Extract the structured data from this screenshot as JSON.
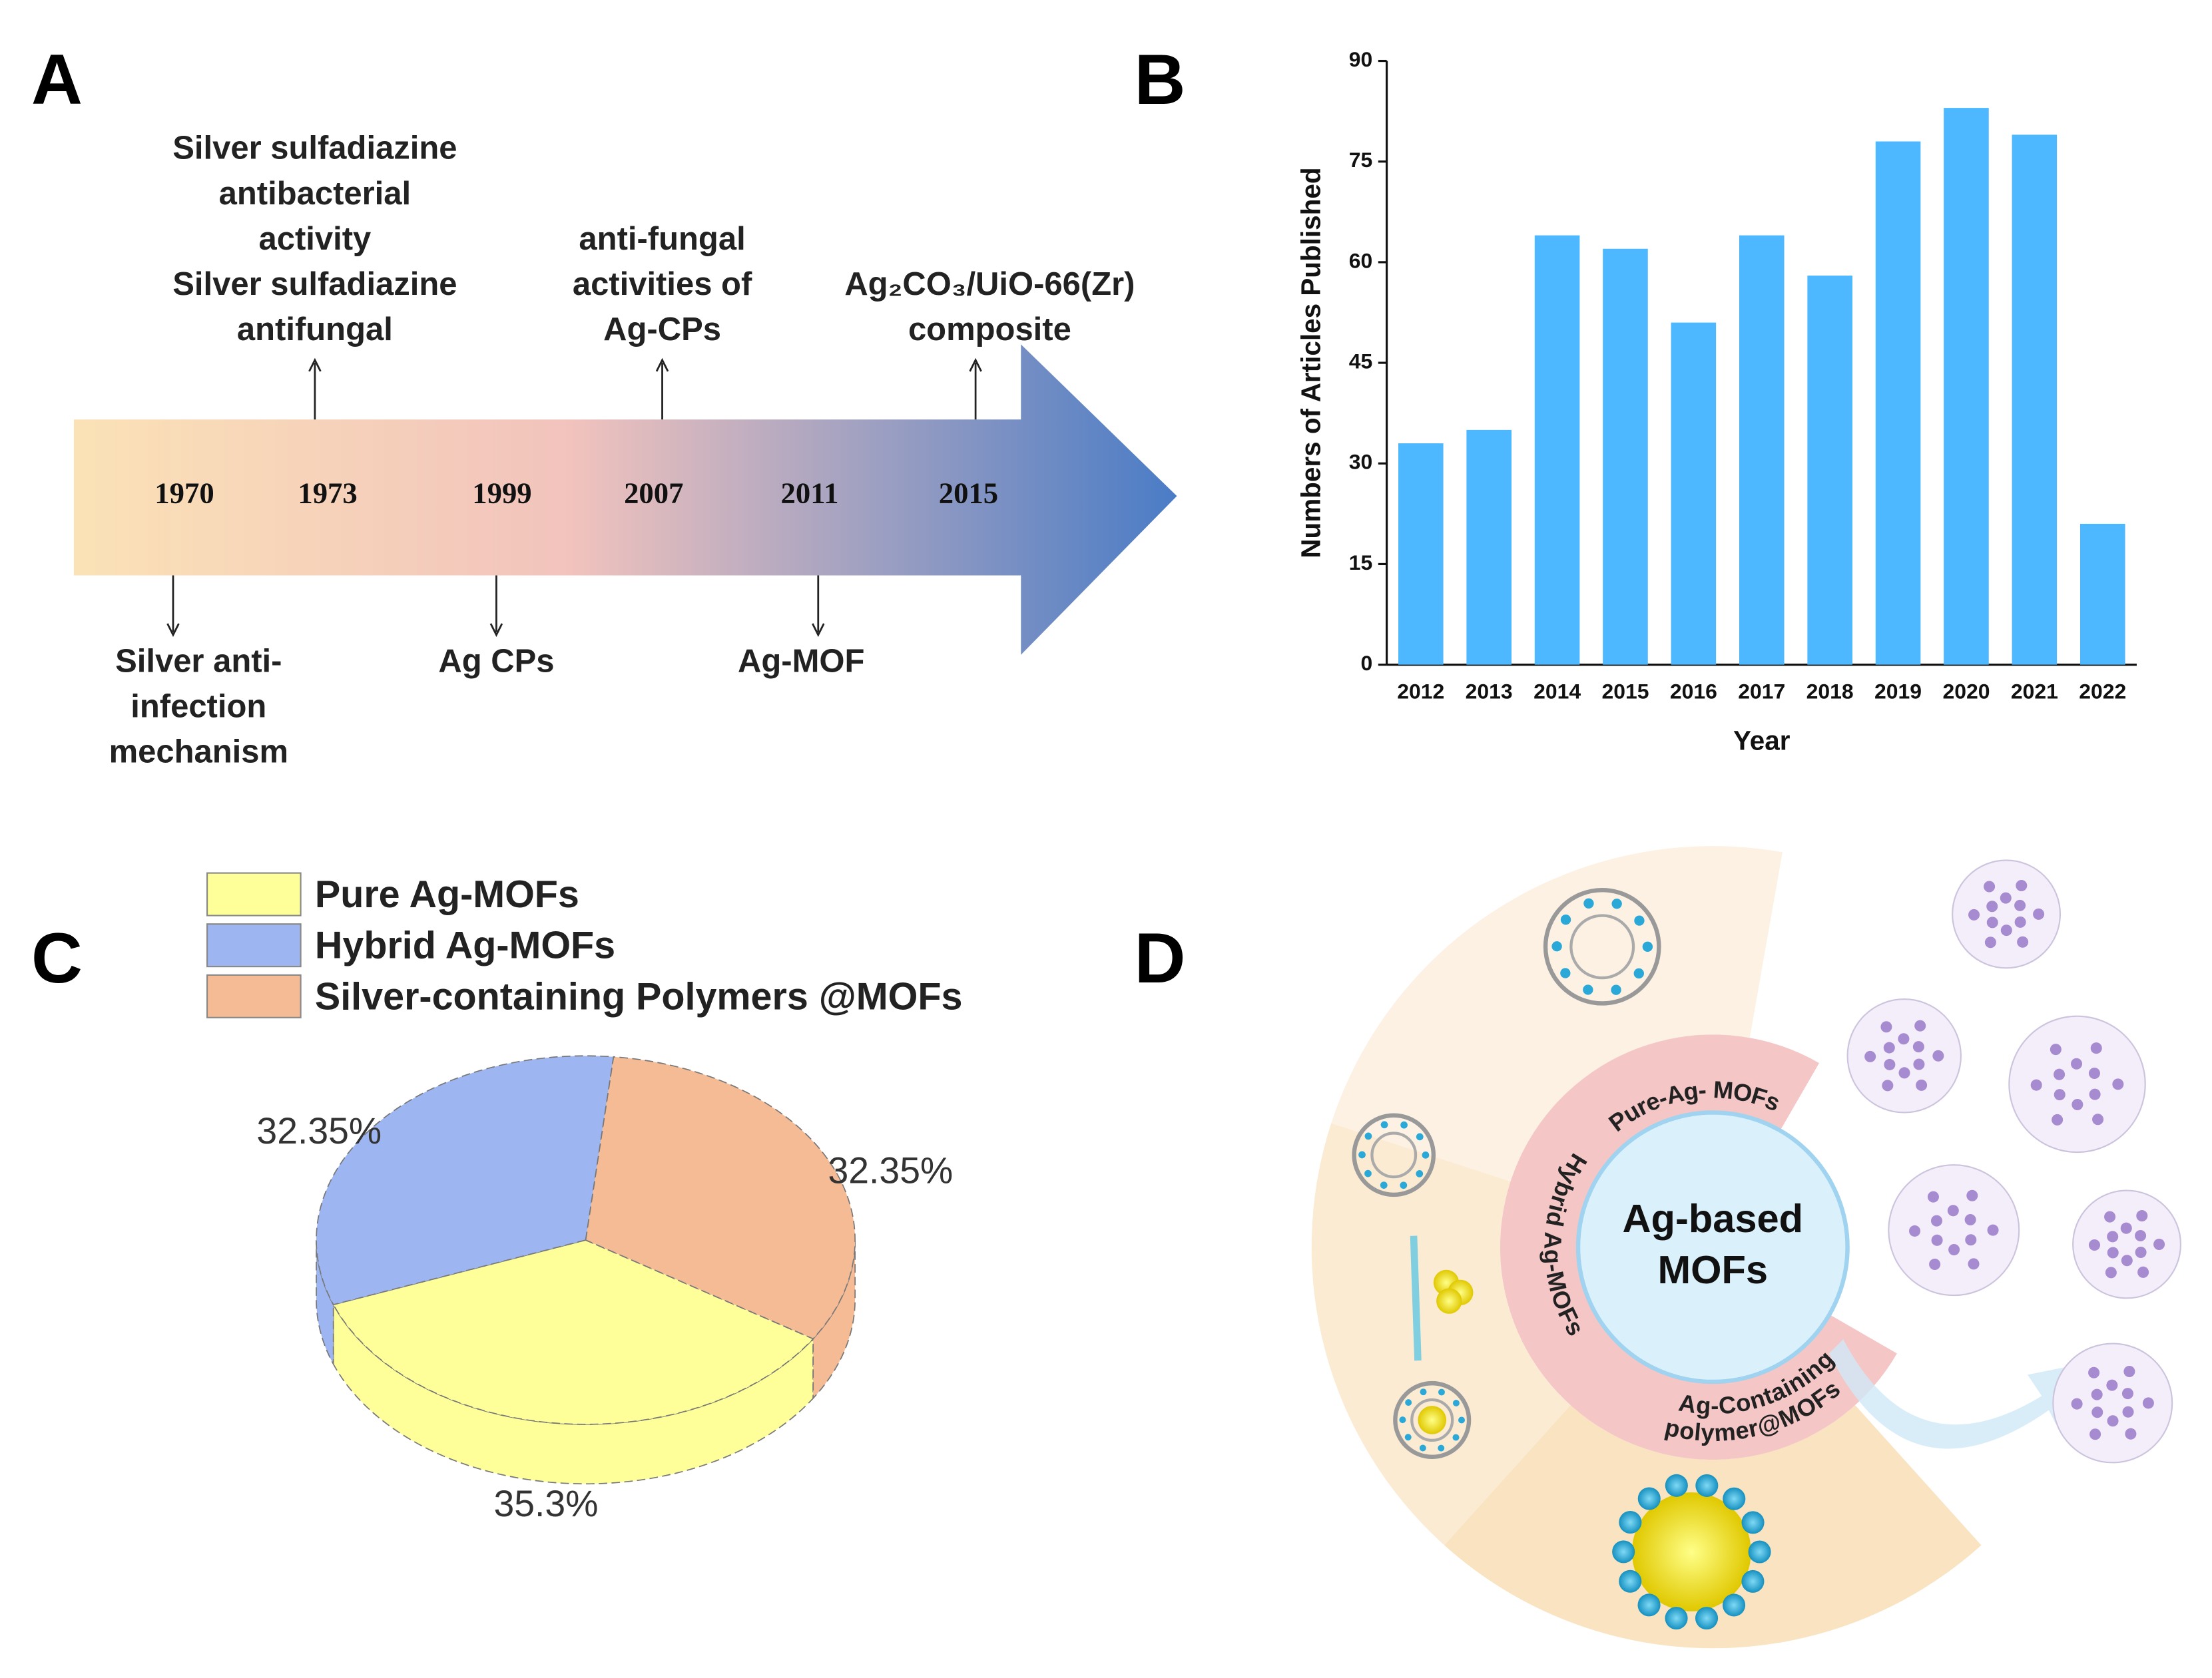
{
  "panel_labels": [
    "A",
    "B",
    "C",
    "D"
  ],
  "timeline": {
    "events": [
      {
        "year": "1970",
        "text": [
          "Silver anti-",
          "infection",
          "mechanism"
        ]
      },
      {
        "year": "1973",
        "text": [
          "Silver sulfadiazine",
          "antibacterial",
          "activity",
          "Silver sulfadiazine",
          "antifungal"
        ]
      },
      {
        "year": "1999",
        "text": [
          "Ag CPs"
        ]
      },
      {
        "year": "2007",
        "text": [
          "anti-fungal",
          "activities of",
          "Ag-CPs"
        ]
      },
      {
        "year": "2011",
        "text": [
          "Ag-MOF"
        ]
      },
      {
        "year": "2015",
        "text": [
          "Ag₂CO₃/UiO-66(Zr)",
          "composite"
        ]
      }
    ]
  },
  "chart_data": [
    {
      "type": "bar",
      "x_label": "Year",
      "y_label": "Numbers of Articles Published",
      "categories": [
        "2012",
        "2013",
        "2014",
        "2015",
        "2016",
        "2017",
        "2018",
        "2019",
        "2020",
        "2021",
        "2022"
      ],
      "values": [
        33,
        35,
        64,
        62,
        51,
        64,
        58,
        78,
        83,
        79,
        21
      ],
      "color": "#4db8ff",
      "ylim": [
        0,
        90
      ],
      "yticks": [
        0,
        15,
        30,
        45,
        60,
        75,
        90
      ]
    },
    {
      "type": "pie",
      "categories": [
        "Pure Ag-MOFs",
        "Hybrid Ag-MOFs",
        "Silver-containing Polymers @MOFs"
      ],
      "values": [
        35.3,
        32.35,
        32.35
      ],
      "value_labels": [
        "35.3%",
        "32.35%",
        "32.35%"
      ],
      "colors": [
        "#ffff99",
        "#9db5f0",
        "#f5bb95"
      ],
      "legend": "top"
    }
  ],
  "diagram": {
    "center": [
      "Ag-based",
      "MOFs"
    ],
    "ring": [
      "Pure-Ag- MOFs",
      "Hybrid Ag-MOFs",
      "Ag-Containing",
      "polymer@MOFs"
    ]
  }
}
